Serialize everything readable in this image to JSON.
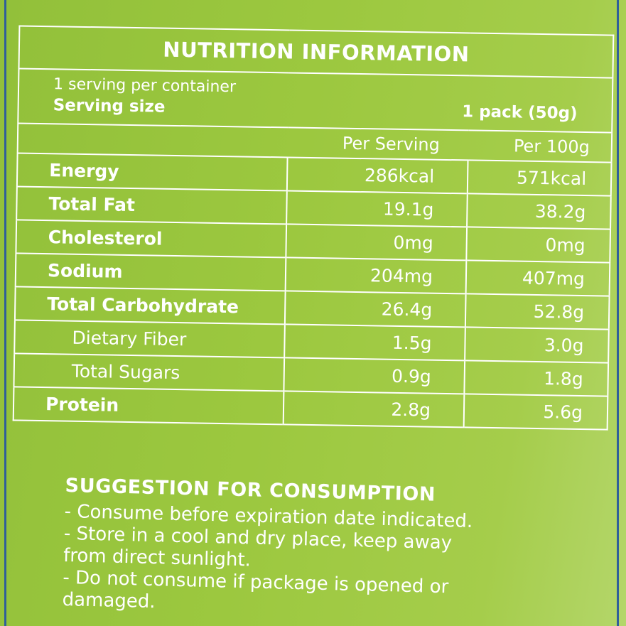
{
  "nutrition": {
    "title": "NUTRITION INFORMATION",
    "servings_per_container": "1 serving per container",
    "serving_size_label": "Serving size",
    "serving_size_value": "1 pack (50g)",
    "col_per_serving": "Per Serving",
    "col_per_100g": "Per 100g",
    "rows": [
      {
        "label": "Energy",
        "per_serving": "286kcal",
        "per_100g": "571kcal"
      },
      {
        "label": "Total Fat",
        "per_serving": "19.1g",
        "per_100g": "38.2g"
      },
      {
        "label": "Cholesterol",
        "per_serving": "0mg",
        "per_100g": "0mg"
      },
      {
        "label": "Sodium",
        "per_serving": "204mg",
        "per_100g": "407mg"
      },
      {
        "label": "Total Carbohydrate",
        "per_serving": "26.4g",
        "per_100g": "52.8g"
      },
      {
        "label": "Dietary Fiber",
        "per_serving": "1.5g",
        "per_100g": "3.0g"
      },
      {
        "label": "Total Sugars",
        "per_serving": "0.9g",
        "per_100g": "1.8g"
      },
      {
        "label": "Protein",
        "per_serving": "2.8g",
        "per_100g": "5.6g"
      }
    ]
  },
  "suggestion": {
    "title": "SUGGESTION FOR CONSUMPTION",
    "items": [
      [
        "- Consume before expiration date indicated."
      ],
      [
        "- Store in a cool and dry place, keep away",
        "from direct sunlight."
      ],
      [
        "- Do not consume if package is opened or",
        "damaged."
      ]
    ]
  },
  "colors": {
    "background": "#9cc83f",
    "text": "#ffffff",
    "edge_line": "#2f5f9a"
  }
}
